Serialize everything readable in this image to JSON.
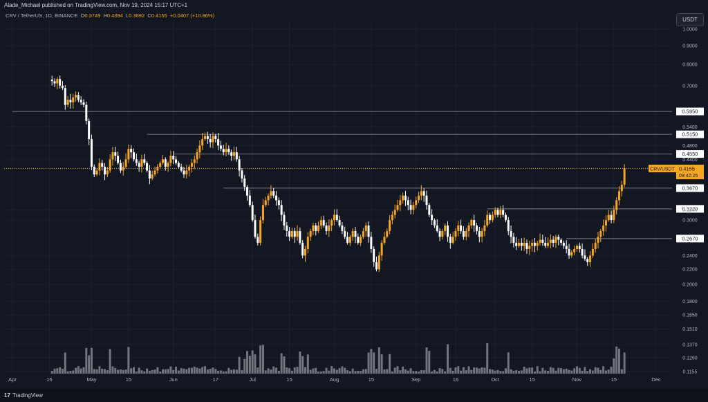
{
  "header": {
    "publisher_line": "Alade_Michael published on TradingView.com, Nov 19, 2024 15:17 UTC+1"
  },
  "legend": {
    "symbol": "CRV / TetherUS, 1D, BINANCE",
    "o_label": "O",
    "o_value": "0.3749",
    "h_label": "H",
    "h_value": "0.4394",
    "l_label": "L",
    "l_value": "0.3692",
    "c_label": "C",
    "c_value": "0.4155",
    "change": "+0.0407 (+10.86%)"
  },
  "currency_button": "USDT",
  "price_label": {
    "symbol": "CRV/USDT",
    "price": "0.4155",
    "countdown": "09:42:25"
  },
  "footer": {
    "logo": "17",
    "brand": "TradingView"
  },
  "colors": {
    "background": "#131722",
    "up": "#f5a623",
    "down": "#ffffff",
    "level_line": "#787b86",
    "price_line": "#f5a623",
    "volume": "#8a8d96"
  },
  "chart_data": {
    "type": "candlestick",
    "scale": "log",
    "ylim": [
      0.1155,
      1.0
    ],
    "y_ticks": [
      "1.0000",
      "0.9000",
      "0.8000",
      "0.7000",
      "0.5400",
      "0.4800",
      "0.4400",
      "0.3200",
      "0.3000",
      "0.2400",
      "0.2200",
      "0.2000",
      "0.1800",
      "0.1650",
      "0.1510",
      "0.1370",
      "0.1260",
      "0.1155"
    ],
    "x_ticks": [
      "Apr",
      "15",
      "May",
      "15",
      "Jun",
      "17",
      "Jul",
      "15",
      "Aug",
      "15",
      "Sep",
      "16",
      "Oct",
      "15",
      "Nov",
      "15",
      "Dec"
    ],
    "x_start": "2024-04-01",
    "last_date": "2024-11-19",
    "levels": [
      {
        "value": 0.595,
        "label": "0.5950",
        "start": "2024-04-01"
      },
      {
        "value": 0.515,
        "label": "0.5150",
        "start": "2024-05-22"
      },
      {
        "value": 0.455,
        "label": "0.4550",
        "start": "2024-06-01"
      },
      {
        "value": 0.367,
        "label": "0.3670",
        "start": "2024-06-20"
      },
      {
        "value": 0.322,
        "label": "0.3220",
        "start": "2024-09-28"
      },
      {
        "value": 0.267,
        "label": "0.2670",
        "start": "2024-10-28"
      }
    ],
    "current_price": 0.4155,
    "closes": [
      0.72,
      0.71,
      0.73,
      0.7,
      0.69,
      0.62,
      0.64,
      0.63,
      0.65,
      0.66,
      0.64,
      0.63,
      0.62,
      0.56,
      0.5,
      0.42,
      0.4,
      0.41,
      0.43,
      0.42,
      0.4,
      0.41,
      0.44,
      0.46,
      0.45,
      0.43,
      0.41,
      0.42,
      0.44,
      0.47,
      0.46,
      0.44,
      0.43,
      0.42,
      0.44,
      0.43,
      0.41,
      0.39,
      0.4,
      0.41,
      0.42,
      0.43,
      0.44,
      0.42,
      0.43,
      0.45,
      0.44,
      0.43,
      0.42,
      0.41,
      0.4,
      0.41,
      0.42,
      0.43,
      0.44,
      0.46,
      0.48,
      0.5,
      0.51,
      0.5,
      0.49,
      0.51,
      0.5,
      0.48,
      0.47,
      0.46,
      0.47,
      0.46,
      0.45,
      0.46,
      0.44,
      0.41,
      0.39,
      0.37,
      0.35,
      0.33,
      0.3,
      0.27,
      0.26,
      0.3,
      0.33,
      0.34,
      0.35,
      0.36,
      0.35,
      0.34,
      0.33,
      0.31,
      0.29,
      0.28,
      0.27,
      0.28,
      0.27,
      0.28,
      0.26,
      0.24,
      0.25,
      0.27,
      0.28,
      0.29,
      0.28,
      0.29,
      0.3,
      0.29,
      0.28,
      0.29,
      0.3,
      0.31,
      0.3,
      0.29,
      0.28,
      0.27,
      0.26,
      0.27,
      0.28,
      0.27,
      0.26,
      0.27,
      0.28,
      0.29,
      0.27,
      0.25,
      0.23,
      0.22,
      0.24,
      0.26,
      0.27,
      0.28,
      0.3,
      0.31,
      0.32,
      0.33,
      0.34,
      0.35,
      0.34,
      0.33,
      0.32,
      0.33,
      0.34,
      0.35,
      0.36,
      0.35,
      0.33,
      0.31,
      0.3,
      0.29,
      0.28,
      0.27,
      0.28,
      0.29,
      0.27,
      0.26,
      0.27,
      0.28,
      0.29,
      0.28,
      0.27,
      0.28,
      0.29,
      0.3,
      0.29,
      0.28,
      0.27,
      0.28,
      0.29,
      0.31,
      0.3,
      0.31,
      0.32,
      0.31,
      0.32,
      0.31,
      0.3,
      0.28,
      0.27,
      0.26,
      0.255,
      0.26,
      0.255,
      0.26,
      0.25,
      0.255,
      0.26,
      0.255,
      0.26,
      0.265,
      0.26,
      0.255,
      0.26,
      0.265,
      0.26,
      0.27,
      0.265,
      0.26,
      0.255,
      0.25,
      0.24,
      0.245,
      0.25,
      0.255,
      0.25,
      0.24,
      0.235,
      0.23,
      0.24,
      0.25,
      0.26,
      0.27,
      0.28,
      0.29,
      0.3,
      0.31,
      0.3,
      0.32,
      0.34,
      0.36,
      0.3749,
      0.4155
    ],
    "volume_note": "relative volume bars"
  }
}
